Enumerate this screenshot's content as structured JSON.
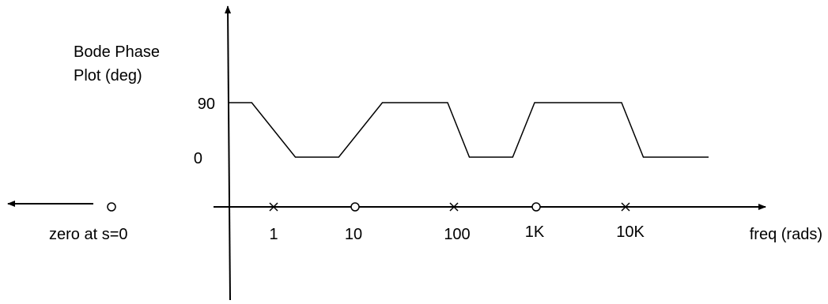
{
  "chart_data": {
    "type": "line",
    "title": "",
    "ylabel_line1": "Bode Phase",
    "ylabel_line2": "Plot (deg)",
    "xlabel": "freq (rads)",
    "y_ticks": [
      {
        "value": 0,
        "label": "0"
      },
      {
        "value": 90,
        "label": "90"
      }
    ],
    "x_ticks": [
      {
        "value": 1,
        "label": "1",
        "marker": "pole"
      },
      {
        "value": 10,
        "label": "10",
        "marker": "zero"
      },
      {
        "value": 100,
        "label": "100",
        "marker": "pole"
      },
      {
        "value": 1000,
        "label": "1K",
        "marker": "zero"
      },
      {
        "value": 10000,
        "label": "10K",
        "marker": "pole"
      }
    ],
    "annotation": {
      "label": "zero at s=0",
      "marker": "zero"
    },
    "x_scale": "log",
    "series": [
      {
        "x": [
          0.3,
          0.56,
          1.78,
          5.6,
          17.8,
          100,
          178,
          560,
          1000,
          1780,
          5600,
          10000,
          17800,
          100000
        ],
        "y": [
          90,
          90,
          0,
          0,
          90,
          90,
          0,
          0,
          90,
          90,
          90,
          90,
          0,
          0
        ]
      }
    ],
    "colors": {
      "line": "#000000",
      "background": "#ffffff"
    }
  }
}
